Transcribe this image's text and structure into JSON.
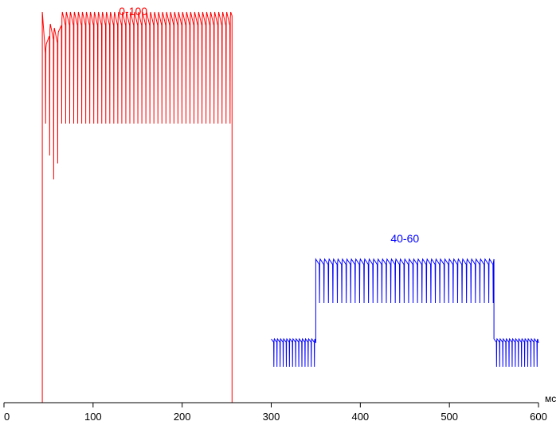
{
  "chart_data": {
    "type": "line",
    "xlabel": "мс",
    "ylabel": "",
    "xlim": [
      0,
      600
    ],
    "ylim": [
      0,
      100
    ],
    "x_ticks": [
      0,
      100,
      200,
      300,
      400,
      500,
      600
    ],
    "x_tick_labels": [
      "0",
      "100",
      "200",
      "300",
      "400",
      "500",
      "600"
    ],
    "grid": false,
    "legend": "none",
    "series": [
      {
        "name": "0-100",
        "color": "#ff0000",
        "segments": [
          {
            "x0": 0,
            "x1": 43,
            "level": 0
          },
          {
            "x0": 43,
            "x1": 256,
            "high": 98,
            "low": 70,
            "period": 4.5,
            "shape": "sawtooth-fast-pulse",
            "initial_transient": true
          },
          {
            "x0": 256,
            "x1": 300,
            "level": 0
          }
        ],
        "label_position": {
          "x": 145,
          "y": 99
        }
      },
      {
        "name": "40-60",
        "color": "#0000ff",
        "segments": [
          {
            "x0": 300,
            "x1": 350,
            "high": 16,
            "low": 9,
            "period": 3.5,
            "shape": "sawtooth-fast-pulse"
          },
          {
            "x0": 350,
            "x1": 550,
            "high": 36,
            "low": 25,
            "period": 5.0,
            "shape": "sawtooth-fast-pulse"
          },
          {
            "x0": 550,
            "x1": 600,
            "high": 16,
            "low": 9,
            "period": 3.5,
            "shape": "sawtooth-fast-pulse"
          }
        ],
        "label_position": {
          "x": 450,
          "y": 42
        }
      }
    ]
  }
}
